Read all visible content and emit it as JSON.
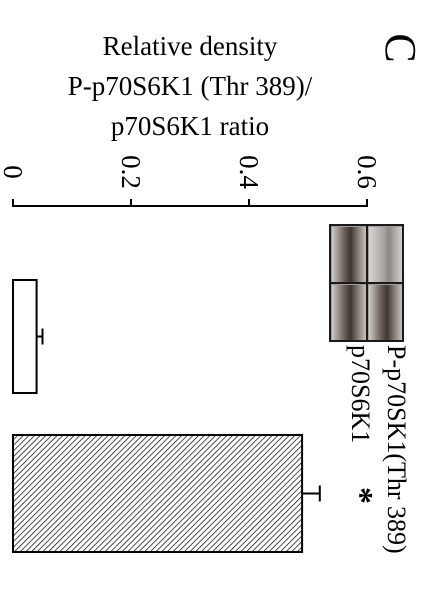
{
  "panel_label": "C",
  "chart_data": {
    "type": "bar",
    "orientation": "horizontal",
    "ylabel": [
      "Relative density",
      "P-p70S6K1 (Thr 389)/",
      "p70S6K1 ratio"
    ],
    "axis_ticks": [
      "0",
      "0.2",
      "0.4",
      "0.6"
    ],
    "tick_values": [
      0,
      0.2,
      0.4,
      0.6
    ],
    "xlim": [
      0,
      0.6
    ],
    "series": [
      {
        "values": [
          0.04,
          0.49
        ],
        "errors": [
          0.01,
          0.03
        ],
        "fills": [
          "white",
          "hatched"
        ]
      }
    ],
    "annotations": [
      {
        "bar_index": 1,
        "text": "*"
      }
    ],
    "blot_labels": [
      "P-p70SK1(Thr 389)",
      "p70S6K1"
    ]
  }
}
